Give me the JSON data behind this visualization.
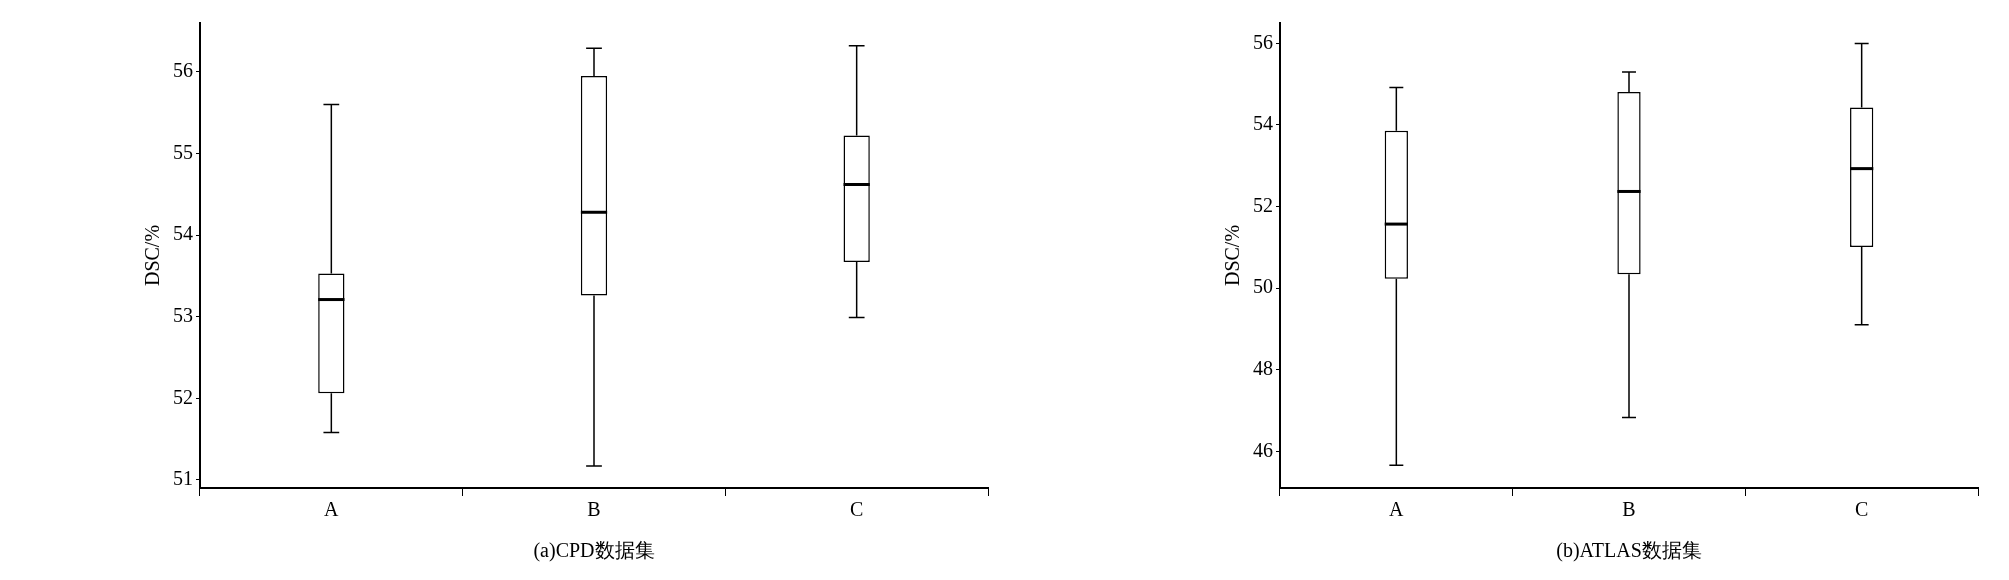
{
  "chart_data": [
    {
      "type": "box",
      "xlabel": "(a)CPD数据集",
      "ylabel": "DSC/%",
      "categories": [
        "A",
        "B",
        "C"
      ],
      "boxes": [
        {
          "low": 51.58,
          "q1": 52.06,
          "median": 53.21,
          "q3": 53.53,
          "high": 55.6
        },
        {
          "low": 51.17,
          "q1": 53.26,
          "median": 54.28,
          "q3": 55.95,
          "high": 56.29
        },
        {
          "low": 52.99,
          "q1": 53.67,
          "median": 54.62,
          "q3": 55.22,
          "high": 56.32
        }
      ],
      "ylim": [
        50.9,
        56.6
      ],
      "yticks": [
        51,
        52,
        53,
        54,
        55,
        56
      ]
    },
    {
      "type": "box",
      "xlabel": "(b)ATLAS数据集",
      "ylabel": "DSC/%",
      "categories": [
        "A",
        "B",
        "C"
      ],
      "boxes": [
        {
          "low": 45.66,
          "q1": 50.23,
          "median": 51.57,
          "q3": 53.86,
          "high": 54.92
        },
        {
          "low": 46.83,
          "q1": 50.34,
          "median": 52.37,
          "q3": 54.81,
          "high": 55.3
        },
        {
          "low": 49.1,
          "q1": 51.01,
          "median": 52.93,
          "q3": 54.43,
          "high": 56.0
        }
      ],
      "ylim": [
        45.1,
        56.5
      ],
      "yticks": [
        46,
        48,
        50,
        52,
        54,
        56
      ]
    }
  ]
}
